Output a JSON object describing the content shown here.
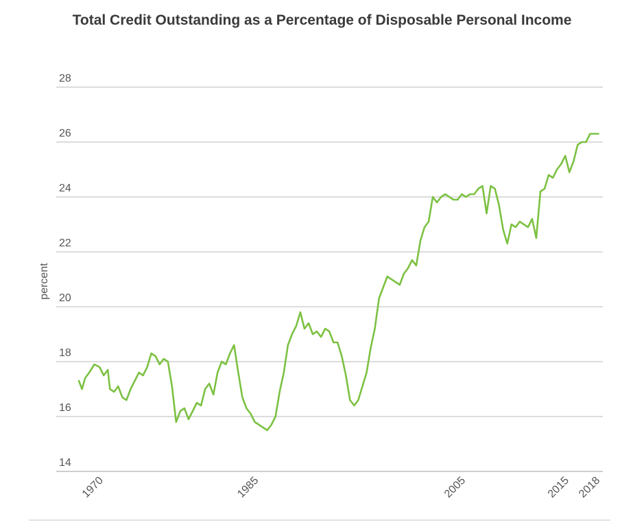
{
  "chart_data": {
    "type": "line",
    "title": "Total Credit Outstanding as a Percentage of Disposable Personal Income",
    "xlabel": "",
    "ylabel": "percent",
    "xlim": [
      1968,
      2018.5
    ],
    "ylim": [
      14,
      28
    ],
    "yticks": [
      14,
      16,
      18,
      20,
      22,
      24,
      26,
      28
    ],
    "xticks": [
      {
        "value": 1970,
        "label": "1970"
      },
      {
        "value": 1985,
        "label": "1985"
      },
      {
        "value": 2005,
        "label": "2005"
      },
      {
        "value": 2015,
        "label": "2015"
      },
      {
        "value": 2018,
        "label": "2018"
      }
    ],
    "grid": true,
    "line_color": "#7cc142",
    "series": [
      {
        "name": "Total credit outstanding (% of disposable personal income)",
        "x": [
          1968.0,
          1968.3,
          1968.6,
          1969.0,
          1969.5,
          1970.0,
          1970.4,
          1970.8,
          1971.0,
          1971.4,
          1971.8,
          1972.2,
          1972.6,
          1973.0,
          1973.4,
          1973.8,
          1974.2,
          1974.6,
          1975.0,
          1975.4,
          1975.8,
          1976.2,
          1976.6,
          1977.0,
          1977.4,
          1977.8,
          1978.2,
          1978.6,
          1979.0,
          1979.4,
          1979.8,
          1980.2,
          1980.6,
          1981.0,
          1981.4,
          1981.8,
          1982.2,
          1982.6,
          1983.0,
          1983.4,
          1983.8,
          1984.2,
          1984.6,
          1985.0,
          1985.4,
          1985.8,
          1986.2,
          1986.6,
          1987.0,
          1987.4,
          1987.8,
          1988.2,
          1988.6,
          1989.0,
          1989.4,
          1989.8,
          1990.2,
          1990.6,
          1991.0,
          1991.4,
          1991.8,
          1992.2,
          1992.6,
          1993.0,
          1993.4,
          1993.8,
          1994.2,
          1994.6,
          1995.0,
          1995.4,
          1995.8,
          1996.2,
          1996.6,
          1997.0,
          1997.4,
          1997.8,
          1998.2,
          1998.6,
          1999.0,
          1999.4,
          1999.8,
          2000.2,
          2000.6,
          2001.0,
          2001.4,
          2001.8,
          2002.2,
          2002.6,
          2003.0,
          2003.4,
          2003.8,
          2004.2,
          2004.6,
          2005.0,
          2005.4,
          2005.8,
          2006.2,
          2006.6,
          2007.0,
          2007.4,
          2007.8,
          2008.2,
          2008.6,
          2009.0,
          2009.4,
          2009.8,
          2010.2,
          2010.6,
          2011.0,
          2011.4,
          2011.8,
          2012.2,
          2012.6,
          2013.0,
          2013.4,
          2013.8,
          2014.2,
          2014.6,
          2015.0,
          2015.4,
          2015.8,
          2016.2,
          2016.6,
          2017.0,
          2017.4,
          2017.8,
          2018.2
        ],
        "values": [
          17.3,
          17.0,
          17.4,
          17.6,
          17.9,
          17.8,
          17.5,
          17.7,
          17.0,
          16.9,
          17.1,
          16.7,
          16.6,
          17.0,
          17.3,
          17.6,
          17.5,
          17.8,
          18.3,
          18.2,
          17.9,
          18.1,
          18.0,
          17.1,
          15.8,
          16.2,
          16.3,
          15.9,
          16.2,
          16.5,
          16.4,
          17.0,
          17.2,
          16.8,
          17.6,
          18.0,
          17.9,
          18.3,
          18.6,
          17.6,
          16.7,
          16.3,
          16.1,
          15.8,
          15.7,
          15.6,
          15.5,
          15.7,
          16.0,
          16.9,
          17.6,
          18.6,
          19.0,
          19.3,
          19.8,
          19.2,
          19.4,
          19.0,
          19.1,
          18.9,
          19.2,
          19.1,
          18.7,
          18.7,
          18.2,
          17.5,
          16.6,
          16.4,
          16.6,
          17.1,
          17.6,
          18.5,
          19.2,
          20.3,
          20.7,
          21.1,
          21.0,
          20.9,
          20.8,
          21.2,
          21.4,
          21.7,
          21.5,
          22.4,
          22.9,
          23.1,
          24.0,
          23.8,
          24.0,
          24.1,
          24.0,
          23.9,
          23.9,
          24.1,
          24.0,
          24.1,
          24.1,
          24.3,
          24.4,
          23.4,
          24.4,
          24.3,
          23.7,
          22.8,
          22.3,
          23.0,
          22.9,
          23.1,
          23.0,
          22.9,
          23.2,
          22.5,
          24.2,
          24.3,
          24.8,
          24.7,
          25.0,
          25.2,
          25.5,
          24.9,
          25.3,
          25.9,
          26.0,
          26.0,
          26.3,
          26.3,
          26.3
        ]
      }
    ]
  }
}
